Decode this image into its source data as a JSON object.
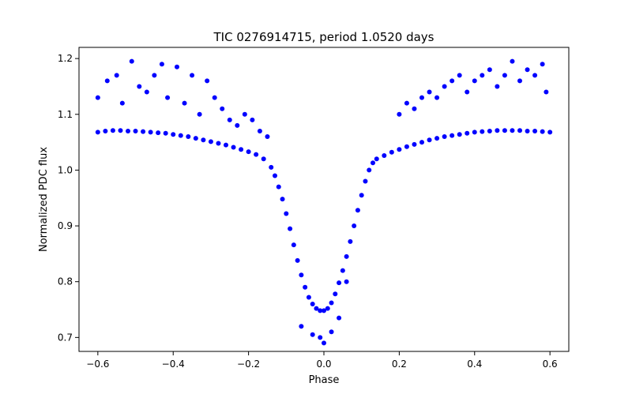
{
  "chart_data": {
    "type": "scatter",
    "title": "TIC 0276914715, period 1.0520 days",
    "xlabel": "Phase",
    "ylabel": "Normalized PDC flux",
    "xlim": [
      -0.65,
      0.65
    ],
    "ylim": [
      0.675,
      1.22
    ],
    "x_ticks": [
      -0.6,
      -0.4,
      -0.2,
      0.0,
      0.2,
      0.4,
      0.6
    ],
    "x_tick_labels": [
      "−0.6",
      "−0.4",
      "−0.2",
      "0.0",
      "0.2",
      "0.4",
      "0.6"
    ],
    "y_ticks": [
      0.7,
      0.8,
      0.9,
      1.0,
      1.1,
      1.2
    ],
    "y_tick_labels": [
      "0.7",
      "0.8",
      "0.9",
      "1.0",
      "1.1",
      "1.2"
    ],
    "grid": false,
    "legend": "none",
    "marker_color": "#0000ff",
    "series": [
      {
        "x": [
          -0.6,
          -0.58,
          -0.56,
          -0.54,
          -0.52,
          -0.5,
          -0.48,
          -0.46,
          -0.44,
          -0.42,
          -0.4,
          -0.38,
          -0.36,
          -0.34,
          -0.32,
          -0.3,
          -0.28,
          -0.26,
          -0.24,
          -0.22,
          -0.2,
          -0.18,
          -0.16,
          -0.14,
          -0.13,
          -0.12,
          -0.11,
          -0.1,
          -0.09,
          -0.08,
          -0.07,
          -0.06,
          -0.05,
          -0.04,
          -0.03,
          -0.02,
          -0.01,
          0.0,
          0.01,
          0.02,
          0.03,
          0.04,
          0.05,
          0.06,
          0.07,
          0.08,
          0.09,
          0.1,
          0.11,
          0.12,
          0.13,
          0.14,
          0.16,
          0.18,
          0.2,
          0.22,
          0.24,
          0.26,
          0.28,
          0.3,
          0.32,
          0.34,
          0.36,
          0.38,
          0.4,
          0.42,
          0.44,
          0.46,
          0.48,
          0.5,
          0.52,
          0.54,
          0.56,
          0.58,
          0.6
        ],
        "y": [
          1.068,
          1.07,
          1.071,
          1.071,
          1.07,
          1.07,
          1.069,
          1.068,
          1.067,
          1.066,
          1.064,
          1.062,
          1.06,
          1.057,
          1.054,
          1.051,
          1.048,
          1.045,
          1.041,
          1.037,
          1.033,
          1.028,
          1.02,
          1.005,
          0.99,
          0.97,
          0.948,
          0.922,
          0.895,
          0.866,
          0.838,
          0.812,
          0.79,
          0.772,
          0.76,
          0.752,
          0.748,
          0.748,
          0.752,
          0.762,
          0.778,
          0.798,
          0.82,
          0.845,
          0.872,
          0.9,
          0.928,
          0.955,
          0.98,
          1.0,
          1.013,
          1.02,
          1.026,
          1.032,
          1.037,
          1.042,
          1.046,
          1.05,
          1.054,
          1.057,
          1.06,
          1.062,
          1.064,
          1.066,
          1.068,
          1.069,
          1.07,
          1.071,
          1.071,
          1.071,
          1.071,
          1.07,
          1.07,
          1.069,
          1.068
        ]
      }
    ],
    "outliers": {
      "x": [
        -0.6,
        -0.575,
        -0.55,
        -0.535,
        -0.51,
        -0.49,
        -0.47,
        -0.45,
        -0.43,
        -0.415,
        -0.39,
        -0.37,
        -0.35,
        -0.33,
        -0.31,
        -0.29,
        -0.27,
        -0.25,
        -0.23,
        -0.21,
        -0.19,
        -0.17,
        -0.15,
        -0.06,
        -0.03,
        -0.01,
        0.0,
        0.02,
        0.04,
        0.06,
        0.2,
        0.22,
        0.24,
        0.26,
        0.28,
        0.3,
        0.32,
        0.34,
        0.36,
        0.38,
        0.4,
        0.42,
        0.44,
        0.46,
        0.48,
        0.5,
        0.52,
        0.54,
        0.56,
        0.58,
        0.59
      ],
      "y": [
        1.13,
        1.16,
        1.17,
        1.12,
        1.195,
        1.15,
        1.14,
        1.17,
        1.19,
        1.13,
        1.185,
        1.12,
        1.17,
        1.1,
        1.16,
        1.13,
        1.11,
        1.09,
        1.08,
        1.1,
        1.09,
        1.07,
        1.06,
        0.72,
        0.705,
        0.7,
        0.69,
        0.71,
        0.735,
        0.8,
        1.1,
        1.12,
        1.11,
        1.13,
        1.14,
        1.13,
        1.15,
        1.16,
        1.17,
        1.14,
        1.16,
        1.17,
        1.18,
        1.15,
        1.17,
        1.195,
        1.16,
        1.18,
        1.17,
        1.19,
        1.14
      ]
    }
  }
}
